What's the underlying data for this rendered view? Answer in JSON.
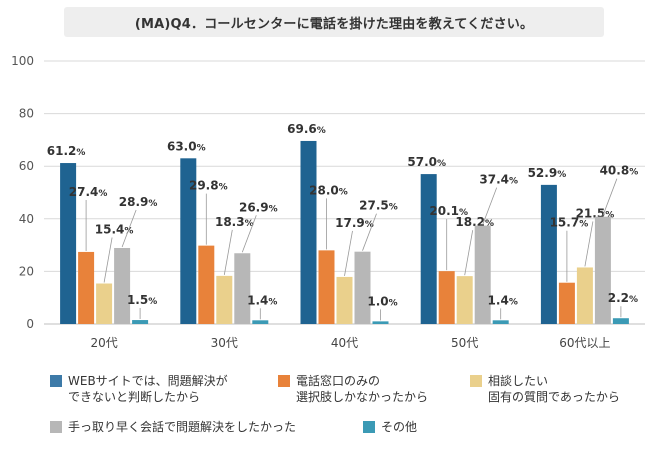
{
  "chart_data": {
    "type": "bar",
    "title": "(MA)Q4．コールセンターに電話を掛けた理由を教えてください。",
    "categories": [
      "20代",
      "30代",
      "40代",
      "50代",
      "60代以上"
    ],
    "ylim": [
      0,
      100
    ],
    "yticks": [
      0,
      20,
      40,
      60,
      80,
      100
    ],
    "grid": true,
    "legend_position": "bottom",
    "value_unit": "%",
    "series": [
      {
        "name": "WEBサイトでは、問題解決ができないと判断したから",
        "color": "#1f6391",
        "values": [
          61.2,
          63.0,
          69.6,
          57.0,
          52.9
        ],
        "labels": [
          "61.2",
          "63.0",
          "69.6",
          "57.0",
          "52.9"
        ]
      },
      {
        "name": "電話窓口のみの選択肢しかなかったから",
        "color": "#e8823a",
        "values": [
          27.4,
          29.8,
          28.0,
          20.1,
          15.7
        ],
        "labels": [
          "27.4",
          "29.8",
          "28.0",
          "20.1",
          "15.7"
        ]
      },
      {
        "name": "相談したい固有の質問であったから",
        "color": "#ead08c",
        "values": [
          15.4,
          18.3,
          17.9,
          18.2,
          21.5
        ],
        "labels": [
          "15.4",
          "18.3",
          "17.9",
          "18.2",
          "21.5"
        ]
      },
      {
        "name": "手っ取り早く会話で問題解決をしたかった",
        "color": "#b7b7b7",
        "values": [
          28.9,
          26.9,
          27.5,
          37.4,
          40.8
        ],
        "labels": [
          "28.9",
          "26.9",
          "27.5",
          "37.4",
          "40.8"
        ]
      },
      {
        "name": "その他",
        "color": "#3b9ab5",
        "values": [
          1.5,
          1.4,
          1.0,
          1.4,
          2.2
        ],
        "labels": [
          "1.5",
          "1.4",
          "1.0",
          "1.4",
          "2.2"
        ]
      }
    ]
  },
  "legend": [
    {
      "label": "WEBサイトでは、問題解決が\nできないと判断したから",
      "color": "#3d7aa8"
    },
    {
      "label": "電話窓口のみの\n選択肢しかなかったから",
      "color": "#e8823a"
    },
    {
      "label": "相談したい\n固有の質問であったから",
      "color": "#ead08c"
    },
    {
      "label": "手っ取り早く会話で問題解決をしたかった",
      "color": "#b7b7b7"
    },
    {
      "label": "その他",
      "color": "#3b9ab5"
    }
  ]
}
